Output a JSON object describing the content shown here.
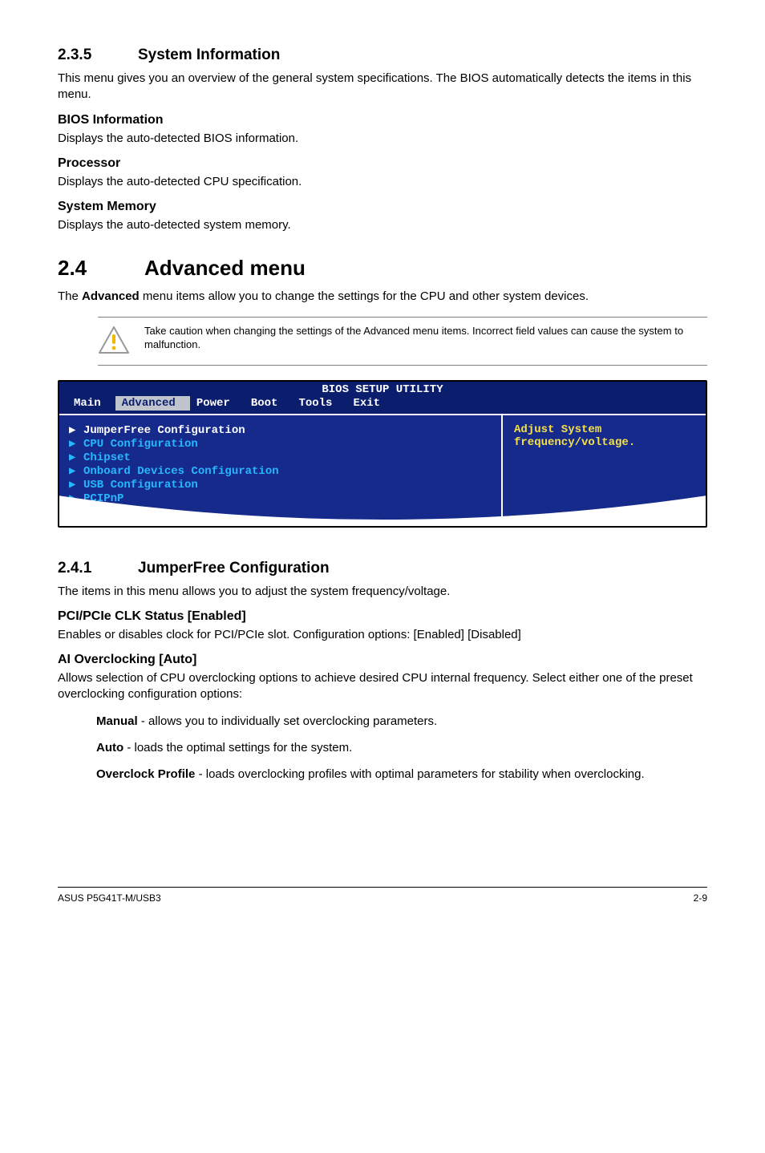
{
  "s235": {
    "num": "2.3.5",
    "title": "System Information",
    "intro": "This menu gives you an overview of the general system specifications. The BIOS automatically detects the items in this menu.",
    "items": [
      {
        "h": "BIOS Information",
        "p": "Displays the auto-detected BIOS information."
      },
      {
        "h": "Processor",
        "p": "Displays the auto-detected CPU specification."
      },
      {
        "h": "System Memory",
        "p": "Displays the auto-detected system memory."
      }
    ]
  },
  "s24": {
    "num": "2.4",
    "title": "Advanced menu",
    "intro_prefix": "The ",
    "intro_bold": "Advanced",
    "intro_suffix": " menu items allow you to change the settings for the CPU and other system devices.",
    "caution": "Take caution when changing the settings of the Advanced menu items. Incorrect field values can cause the system to malfunction."
  },
  "bios": {
    "title": "BIOS SETUP UTILITY",
    "menu": [
      "Main",
      "Advanced",
      "Power",
      "Boot",
      "Tools",
      "Exit"
    ],
    "selected_menu_index": 1,
    "left_items": [
      "JumperFree Configuration",
      "CPU Configuration",
      "Chipset",
      "Onboard Devices Configuration",
      "USB Configuration",
      "PCIPnP"
    ],
    "selected_left_index": 0,
    "help_line1": "Adjust System",
    "help_line2": "frequency/voltage.",
    "colors": {
      "outer_bg": "#0b1e6e",
      "inner_bg": "#152a8a",
      "text_cyan": "#27b7ff",
      "text_yellow": "#f5e04a",
      "sel_bg": "#c0c4cc"
    }
  },
  "s241": {
    "num": "2.4.1",
    "title": "JumperFree Configuration",
    "intro": "The items in this menu allows you to adjust the system frequency/voltage.",
    "pci": {
      "h": "PCI/PCIe CLK Status [Enabled]",
      "p": "Enables or disables clock for PCI/PCIe slot. Configuration options: [Enabled] [Disabled]"
    },
    "ai": {
      "h": "AI Overclocking [Auto]",
      "p": "Allows selection of CPU overclocking options to achieve desired CPU internal frequency. Select either one of the preset overclocking configuration options:",
      "opts": [
        {
          "b": "Manual",
          "t": " - allows you to individually set overclocking parameters."
        },
        {
          "b": "Auto",
          "t": " - loads the optimal settings for the system."
        },
        {
          "b": "Overclock Profile",
          "t": " - loads overclocking profiles with optimal parameters for stability when overclocking."
        }
      ]
    }
  },
  "footer": {
    "left": "ASUS P5G41T-M/USB3",
    "right": "2-9"
  }
}
